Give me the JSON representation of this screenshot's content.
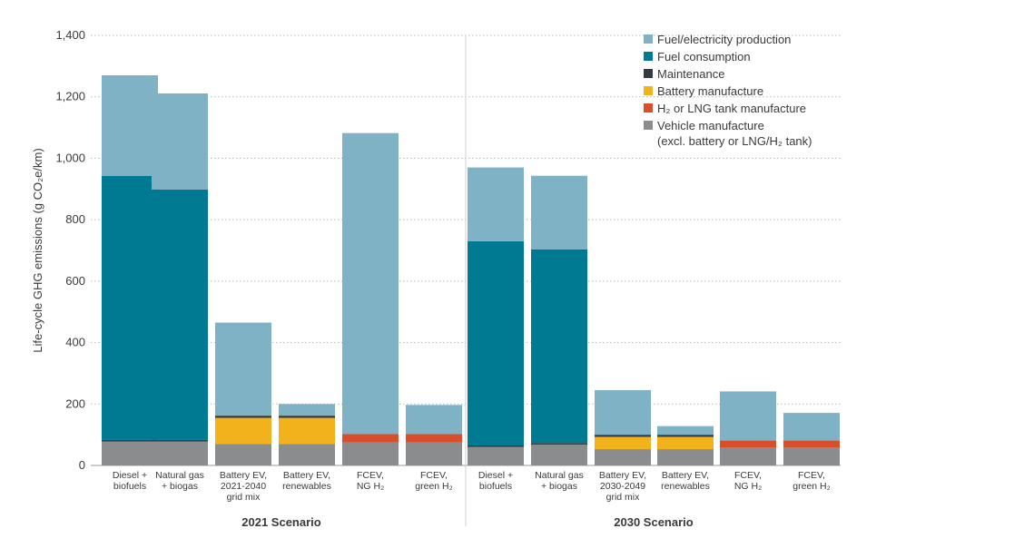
{
  "chart_data": {
    "type": "bar",
    "stacked": true,
    "ylabel": "Life-cycle GHG emissions (g CO₂e/km)",
    "ylim": [
      0,
      1400
    ],
    "yticks": [
      0,
      200,
      400,
      600,
      800,
      1000,
      1200,
      1400
    ],
    "ytick_labels": [
      "0",
      "200",
      "400",
      "600",
      "800",
      "1,000",
      "1,200",
      "1,400"
    ],
    "grid": true,
    "legend_position": "top-right",
    "groups": [
      {
        "name": "2021 Scenario",
        "categories": [
          [
            "Diesel +",
            "biofuels"
          ],
          [
            "Natural gas",
            "+ biogas"
          ],
          [
            "Battery EV,",
            "2021-2040",
            "grid mix"
          ],
          [
            "Battery EV,",
            "renewables"
          ],
          [
            "FCEV,",
            "NG H₂"
          ],
          [
            "FCEV,",
            "green H₂"
          ]
        ]
      },
      {
        "name": "2030 Scenario",
        "categories": [
          [
            "Diesel +",
            "biofuels"
          ],
          [
            "Natural gas",
            "+ biogas"
          ],
          [
            "Battery EV,",
            "2030-2049",
            "grid mix"
          ],
          [
            "Battery EV,",
            "renewables"
          ],
          [
            "FCEV,",
            "NG H₂"
          ],
          [
            "FCEV,",
            "green H₂"
          ]
        ]
      }
    ],
    "series": [
      {
        "name": "Vehicle manufacture",
        "name_line2": "(excl. battery or LNG/H₂ tank)",
        "color": "#8a8c8e",
        "values": [
          78,
          78,
          70,
          70,
          75,
          75,
          60,
          68,
          53,
          53,
          58,
          58
        ]
      },
      {
        "name": "H₂ or LNG tank manufacture",
        "color": "#d94f2b",
        "values": [
          0,
          0,
          0,
          0,
          27,
          27,
          0,
          0,
          0,
          0,
          23,
          23
        ]
      },
      {
        "name": "Battery manufacture",
        "color": "#f2b21c",
        "values": [
          0,
          0,
          85,
          85,
          0,
          0,
          0,
          0,
          40,
          40,
          0,
          0
        ]
      },
      {
        "name": "Maintenance",
        "color": "#333a40",
        "values": [
          5,
          5,
          7,
          7,
          0,
          0,
          5,
          5,
          7,
          7,
          0,
          0
        ]
      },
      {
        "name": "Fuel consumption",
        "color": "#007a92",
        "values": [
          860,
          815,
          0,
          0,
          0,
          0,
          665,
          630,
          0,
          0,
          0,
          0
        ]
      },
      {
        "name": "Fuel/electricity production",
        "color": "#7fb2c5",
        "values": [
          327,
          313,
          303,
          38,
          980,
          95,
          240,
          240,
          145,
          28,
          160,
          90
        ]
      }
    ],
    "legend_order": [
      "Fuel/electricity production",
      "Fuel consumption",
      "Maintenance",
      "Battery manufacture",
      "H₂ or LNG tank manufacture",
      "Vehicle manufacture"
    ]
  }
}
